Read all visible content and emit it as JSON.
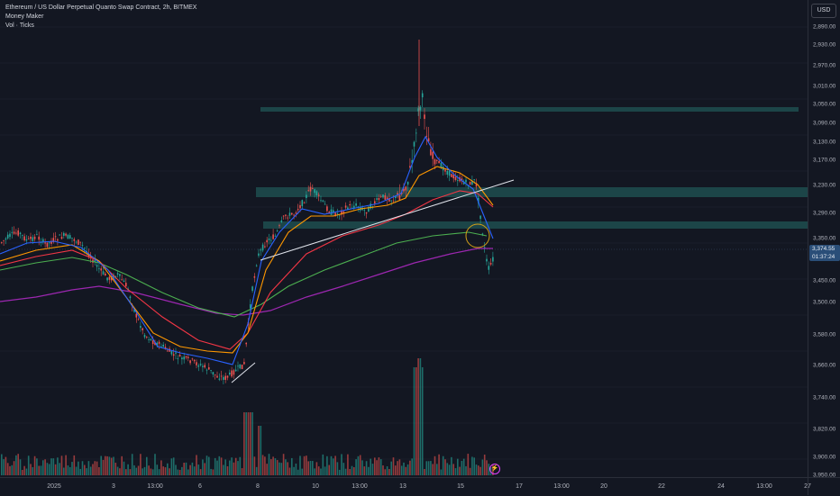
{
  "legend": {
    "symbol": "Ethereum / US Dollar Perpetual Quanto Swap Contract, 2h, BITMEX",
    "indicator1": "Money Maker",
    "indicator2": "Vol · Ticks"
  },
  "currency_button": "USD",
  "current_price": {
    "price": "3,374.55",
    "countdown": "01:37:24"
  },
  "price_axis": {
    "inverted": true,
    "ticks": [
      "2,890.00",
      "2,930.00",
      "2,970.00",
      "3,010.00",
      "3,050.00",
      "3,090.00",
      "3,130.00",
      "3,170.00",
      "3,230.00",
      "3,290.00",
      "3,350.00",
      "3,450.00",
      "3,500.00",
      "3,580.00",
      "3,660.00",
      "3,740.00",
      "3,820.00",
      "3,900.00",
      "3,950.00"
    ]
  },
  "time_axis": {
    "ticks": [
      "2025",
      "3",
      "13:00",
      "6",
      "8",
      "10",
      "13:00",
      "13",
      "15",
      "17",
      "13:00",
      "20",
      "22",
      "24",
      "13:00",
      "27"
    ]
  },
  "colors": {
    "background": "#131722",
    "up_candle": "#26a69a",
    "down_candle": "#ef5350",
    "ema_fast": "#2962ff",
    "ema_mid": "#ff9800",
    "ema_red": "#f23645",
    "ema_green": "#4caf50",
    "ema_purple": "#9c27b0",
    "zone": "#1f4d4f",
    "trendline": "#e0e3eb",
    "circle": "#d4a017"
  },
  "icons": {
    "alert": "lightning-icon"
  }
}
